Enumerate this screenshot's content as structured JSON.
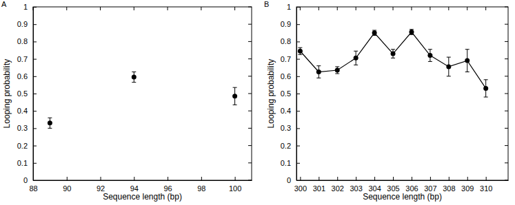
{
  "chart_data": [
    {
      "type": "scatter",
      "title": "A",
      "x_label": "Sequence length (bp)",
      "y_label": "Looping probability",
      "x": [
        89,
        94,
        100
      ],
      "values": [
        0.33,
        0.595,
        0.485
      ],
      "errors": [
        0.03,
        0.03,
        0.05
      ],
      "color": "#000000",
      "marker": "circle",
      "xlim": [
        88,
        101
      ],
      "xticks": [
        88,
        90,
        92,
        94,
        96,
        98,
        100
      ],
      "ylim": [
        0,
        1
      ],
      "yticks": [
        0,
        0.1,
        0.2,
        0.3,
        0.4,
        0.5,
        0.6,
        0.7,
        0.8,
        0.9,
        1
      ]
    },
    {
      "type": "line",
      "title": "B",
      "x_label": "Sequence length (bp)",
      "y_label": "Looping probability",
      "x": [
        300,
        301,
        302,
        303,
        304,
        305,
        306,
        307,
        308,
        309,
        310
      ],
      "values": [
        0.745,
        0.625,
        0.635,
        0.705,
        0.85,
        0.73,
        0.855,
        0.72,
        0.655,
        0.69,
        0.53
      ],
      "errors": [
        0.02,
        0.035,
        0.02,
        0.04,
        0.015,
        0.025,
        0.015,
        0.035,
        0.055,
        0.065,
        0.05
      ],
      "color": "#000000",
      "marker": "circle",
      "line_style": "solid",
      "xlim": [
        299.8,
        311.2
      ],
      "xticks": [
        300,
        301,
        302,
        303,
        304,
        305,
        306,
        307,
        308,
        309,
        310
      ],
      "ylim": [
        0,
        1
      ],
      "yticks": [
        0,
        0.1,
        0.2,
        0.3,
        0.4,
        0.5,
        0.6,
        0.7,
        0.8,
        0.9,
        1
      ]
    }
  ]
}
